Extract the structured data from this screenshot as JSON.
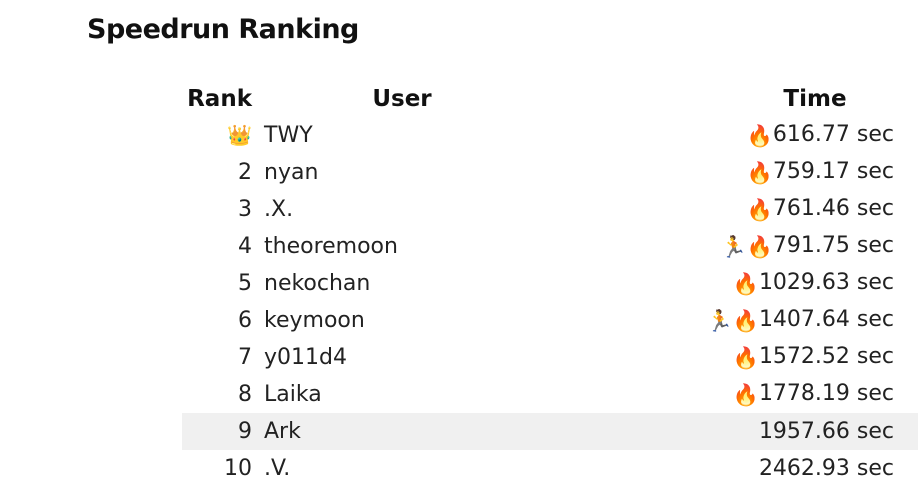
{
  "title": "Speedrun Ranking",
  "columns": {
    "rank": "Rank",
    "user": "User",
    "time": "Time"
  },
  "rows": [
    {
      "rank": "👑",
      "user": "TWY",
      "runner": "",
      "fire": "🔥",
      "time": "616.77 sec",
      "highlighted": false
    },
    {
      "rank": "2",
      "user": "nyan",
      "runner": "",
      "fire": "🔥",
      "time": "759.17 sec",
      "highlighted": false
    },
    {
      "rank": "3",
      "user": ".X.",
      "runner": "",
      "fire": "🔥",
      "time": "761.46 sec",
      "highlighted": false
    },
    {
      "rank": "4",
      "user": "theoremoon",
      "runner": "🏃",
      "fire": "🔥",
      "time": "791.75 sec",
      "highlighted": false
    },
    {
      "rank": "5",
      "user": "nekochan",
      "runner": "",
      "fire": "🔥",
      "time": "1029.63 sec",
      "highlighted": false
    },
    {
      "rank": "6",
      "user": "keymoon",
      "runner": "🏃",
      "fire": "🔥",
      "time": "1407.64 sec",
      "highlighted": false
    },
    {
      "rank": "7",
      "user": "y011d4",
      "runner": "",
      "fire": "🔥",
      "time": "1572.52 sec",
      "highlighted": false
    },
    {
      "rank": "8",
      "user": "Laika",
      "runner": "",
      "fire": "🔥",
      "time": "1778.19 sec",
      "highlighted": false
    },
    {
      "rank": "9",
      "user": "Ark",
      "runner": "",
      "fire": "",
      "time": "1957.66 sec",
      "highlighted": true
    },
    {
      "rank": "10",
      "user": ".V.",
      "runner": "",
      "fire": "",
      "time": "2462.93 sec",
      "highlighted": false
    }
  ],
  "icons": {
    "crown": "crown-icon",
    "fire": "fire-icon",
    "runner": "runner-icon"
  },
  "colors": {
    "highlight_row": "#f0f0f0",
    "text": "#222222",
    "background": "#ffffff"
  }
}
